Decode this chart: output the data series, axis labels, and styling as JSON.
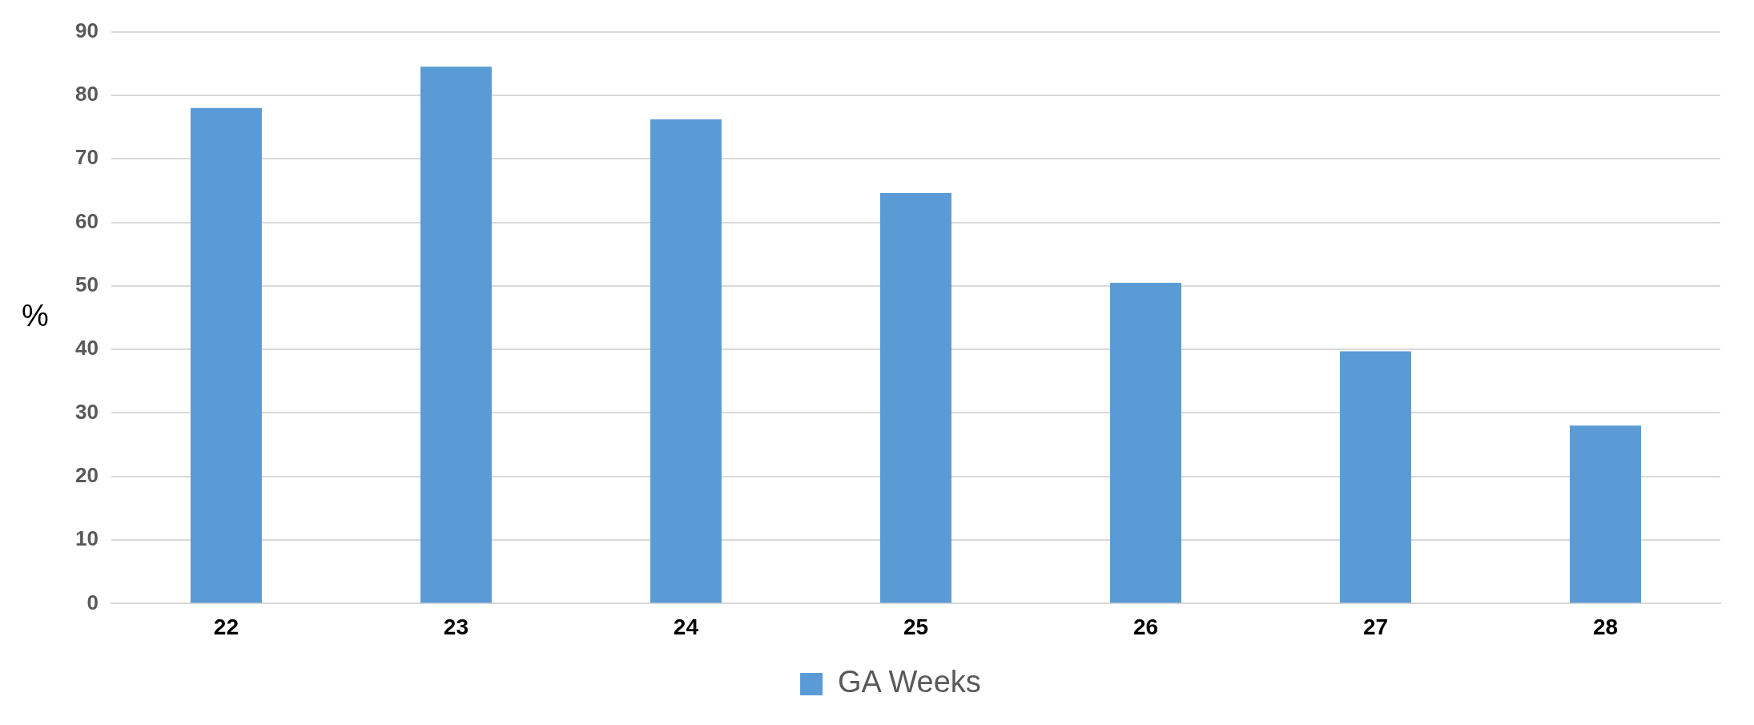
{
  "chart_data": {
    "type": "bar",
    "ylabel": "%",
    "categories": [
      "22",
      "23",
      "24",
      "25",
      "26",
      "27",
      "28"
    ],
    "series": [
      {
        "name": "GA Weeks",
        "color": "#5b9bd5",
        "values": [
          78,
          84.5,
          76.2,
          64.6,
          50.5,
          39.7,
          28
        ]
      }
    ],
    "ylim": [
      0,
      90
    ],
    "yticks": [
      0,
      10,
      20,
      30,
      40,
      50,
      60,
      70,
      80,
      90
    ],
    "grid": "y",
    "legend": "bottom"
  }
}
